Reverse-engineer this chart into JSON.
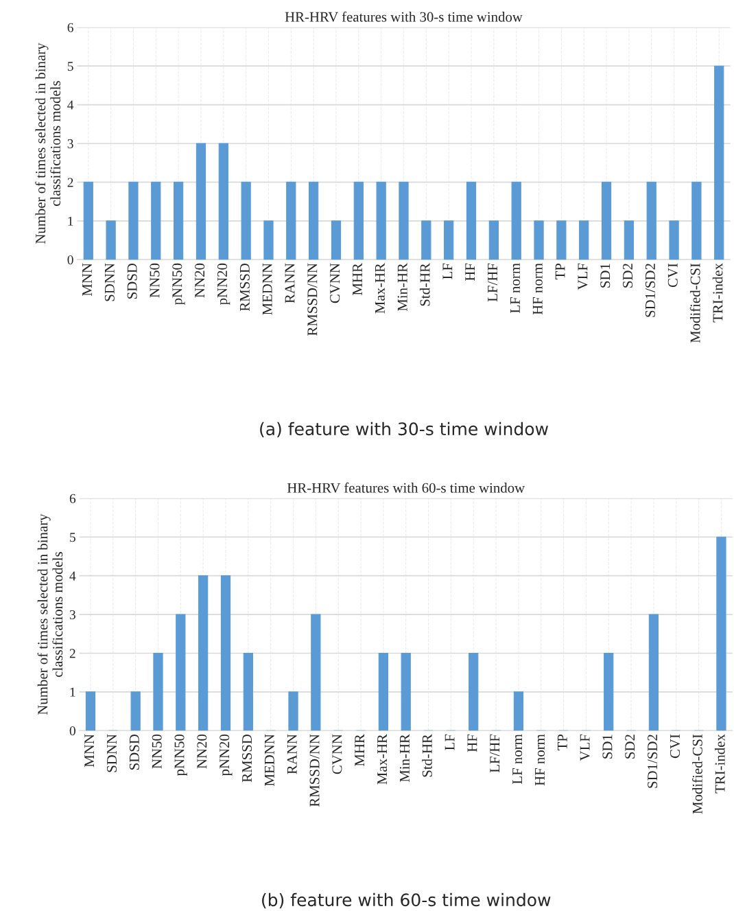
{
  "chart_data": [
    {
      "type": "bar",
      "title": "HR-HRV features with 30-s time window",
      "ylabel": "Number of times selected in binary\nclassifications models",
      "categories": [
        "MNN",
        "SDNN",
        "SDSD",
        "NN50",
        "pNN50",
        "NN20",
        "pNN20",
        "RMSSD",
        "MEDNN",
        "RANN",
        "RMSSD/NN",
        "CVNN",
        "MHR",
        "Max-HR",
        "Min-HR",
        "Std-HR",
        "LF",
        "HF",
        "LF/HF",
        "LF norm",
        "HF norm",
        "TP",
        "VLF",
        "SD1",
        "SD2",
        "SD1/SD2",
        "CVI",
        "Modified-CSI",
        "TRI-index"
      ],
      "values": [
        2,
        1,
        2,
        2,
        2,
        3,
        3,
        2,
        1,
        2,
        2,
        1,
        2,
        2,
        2,
        1,
        1,
        2,
        1,
        2,
        1,
        1,
        1,
        2,
        1,
        2,
        1,
        2,
        5
      ],
      "color": "#5b9bd5",
      "ylim": [
        0,
        6
      ],
      "yticks": [
        0,
        1,
        2,
        3,
        4,
        5,
        6
      ],
      "grid": true,
      "annotations": [
        "(a) feature with 30-s time window"
      ]
    },
    {
      "type": "bar",
      "title": "HR-HRV features with 60-s time window",
      "ylabel": "Number of times selected in binary\nclassifications models",
      "categories": [
        "MNN",
        "SDNN",
        "SDSD",
        "NN50",
        "pNN50",
        "NN20",
        "pNN20",
        "RMSSD",
        "MEDNN",
        "RANN",
        "RMSSD/NN",
        "CVNN",
        "MHR",
        "Max-HR",
        "Min-HR",
        "Std-HR",
        "LF",
        "HF",
        "LF/HF",
        "LF norm",
        "HF norm",
        "TP",
        "VLF",
        "SD1",
        "SD2",
        "SD1/SD2",
        "CVI",
        "Modified-CSI",
        "TRI-index"
      ],
      "values": [
        1,
        0,
        1,
        2,
        3,
        4,
        4,
        2,
        0,
        1,
        3,
        0,
        0,
        2,
        2,
        0,
        0,
        2,
        0,
        1,
        0,
        0,
        0,
        2,
        0,
        3,
        0,
        0,
        5
      ],
      "color": "#5b9bd5",
      "ylim": [
        0,
        6
      ],
      "yticks": [
        0,
        1,
        2,
        3,
        4,
        5,
        6
      ],
      "grid": true,
      "annotations": [
        "(b) feature with 60-s time window"
      ]
    }
  ]
}
